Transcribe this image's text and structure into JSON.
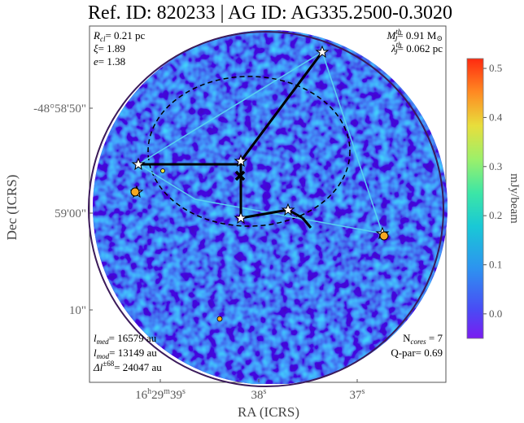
{
  "title": "Ref. ID: 820233 | AG ID: AG335.2500-0.3020",
  "xlabel": "RA (ICRS)",
  "ylabel": "Dec (ICRS)",
  "x_ticks": [
    {
      "sup": "h",
      "parts": [
        "16",
        "29",
        "39"
      ],
      "units": [
        "h",
        "m",
        "s"
      ]
    },
    {
      "label": "38",
      "unit": "s"
    },
    {
      "label": "37",
      "unit": "s"
    }
  ],
  "y_ticks": [
    "-48°58'50\"",
    "59'00\"",
    "10\""
  ],
  "colorbar": {
    "label": "mJy/beam",
    "ticks": [
      "0.5",
      "0.4",
      "0.3",
      "0.2",
      "0.1",
      "0.0"
    ],
    "vmin": -0.05,
    "vmax": 0.52
  },
  "annotations_top_left": {
    "r_cl": {
      "sym": "R",
      "sub": "cl",
      "val": "= 0.21 pc"
    },
    "xi": {
      "sym": "ξ",
      "val": "= 1.89"
    },
    "e": {
      "sym": "e",
      "val": "= 1.38"
    }
  },
  "annotations_top_right": {
    "mj": {
      "sym": "M",
      "sub": "J",
      "sup": "th",
      "val": "= 0.91 M",
      "sun": "⊙"
    },
    "lam": {
      "sym": "λ",
      "sub": "J",
      "sup": "th",
      "val": "= 0.062 pc"
    }
  },
  "annotations_bottom_left": {
    "lmed": {
      "sym": "l",
      "sub": "med",
      "val": "= 16579 au"
    },
    "lmod": {
      "sym": "l",
      "sub": "mod",
      "val": "= 13149 au"
    },
    "dl": {
      "sym": "Δl",
      "sup": "±68",
      "val": "= 24047 au"
    }
  },
  "annotations_bottom_right": {
    "ncores": {
      "sym": "N",
      "sub": "cores",
      "val": " = 7"
    },
    "qpar": {
      "text": "Q-par= 0.69"
    }
  },
  "colors": {
    "background_map": "#5a2be0",
    "mst_edge": "#000000",
    "hull_edge": "#58d0f0",
    "outer_circle": "#3b1a5a",
    "ellipse": "#000000"
  }
}
